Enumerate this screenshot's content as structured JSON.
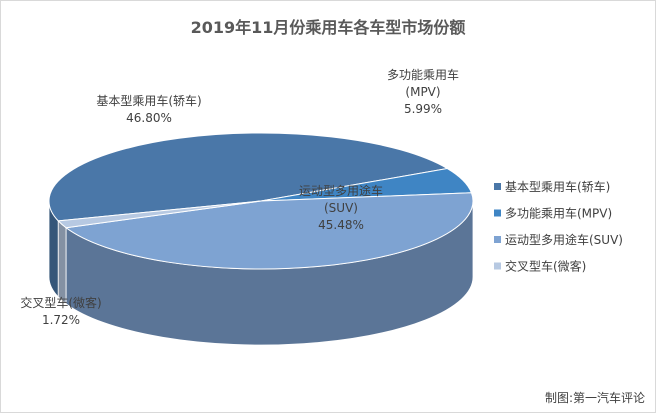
{
  "chart_data": {
    "type": "pie",
    "title": "2019年11月份乘用车各车型市场份额",
    "style": "3d",
    "legend_position": "right",
    "slices": [
      {
        "name": "基本型乘用车(轿车)",
        "value": 46.8,
        "label_lines": [
          "基本型乘用车(轿车)",
          "46.80%"
        ],
        "color": "#4a77a8"
      },
      {
        "name": "多功能乘用车(MPV)",
        "value": 5.99,
        "label_lines": [
          "多功能乘用车",
          "(MPV)",
          "5.99%"
        ],
        "color": "#3f85c4"
      },
      {
        "name": "运动型多用途车(SUV)",
        "value": 45.48,
        "label_lines": [
          "运动型多用途车",
          "(SUV)",
          "45.48%"
        ],
        "color": "#7ea3d2"
      },
      {
        "name": "交叉型车(微客)",
        "value": 1.72,
        "label_lines": [
          "交叉型车(微客)",
          "1.72%"
        ],
        "color": "#b7c9e2"
      }
    ]
  },
  "credit": "制图:第一汽车评论"
}
